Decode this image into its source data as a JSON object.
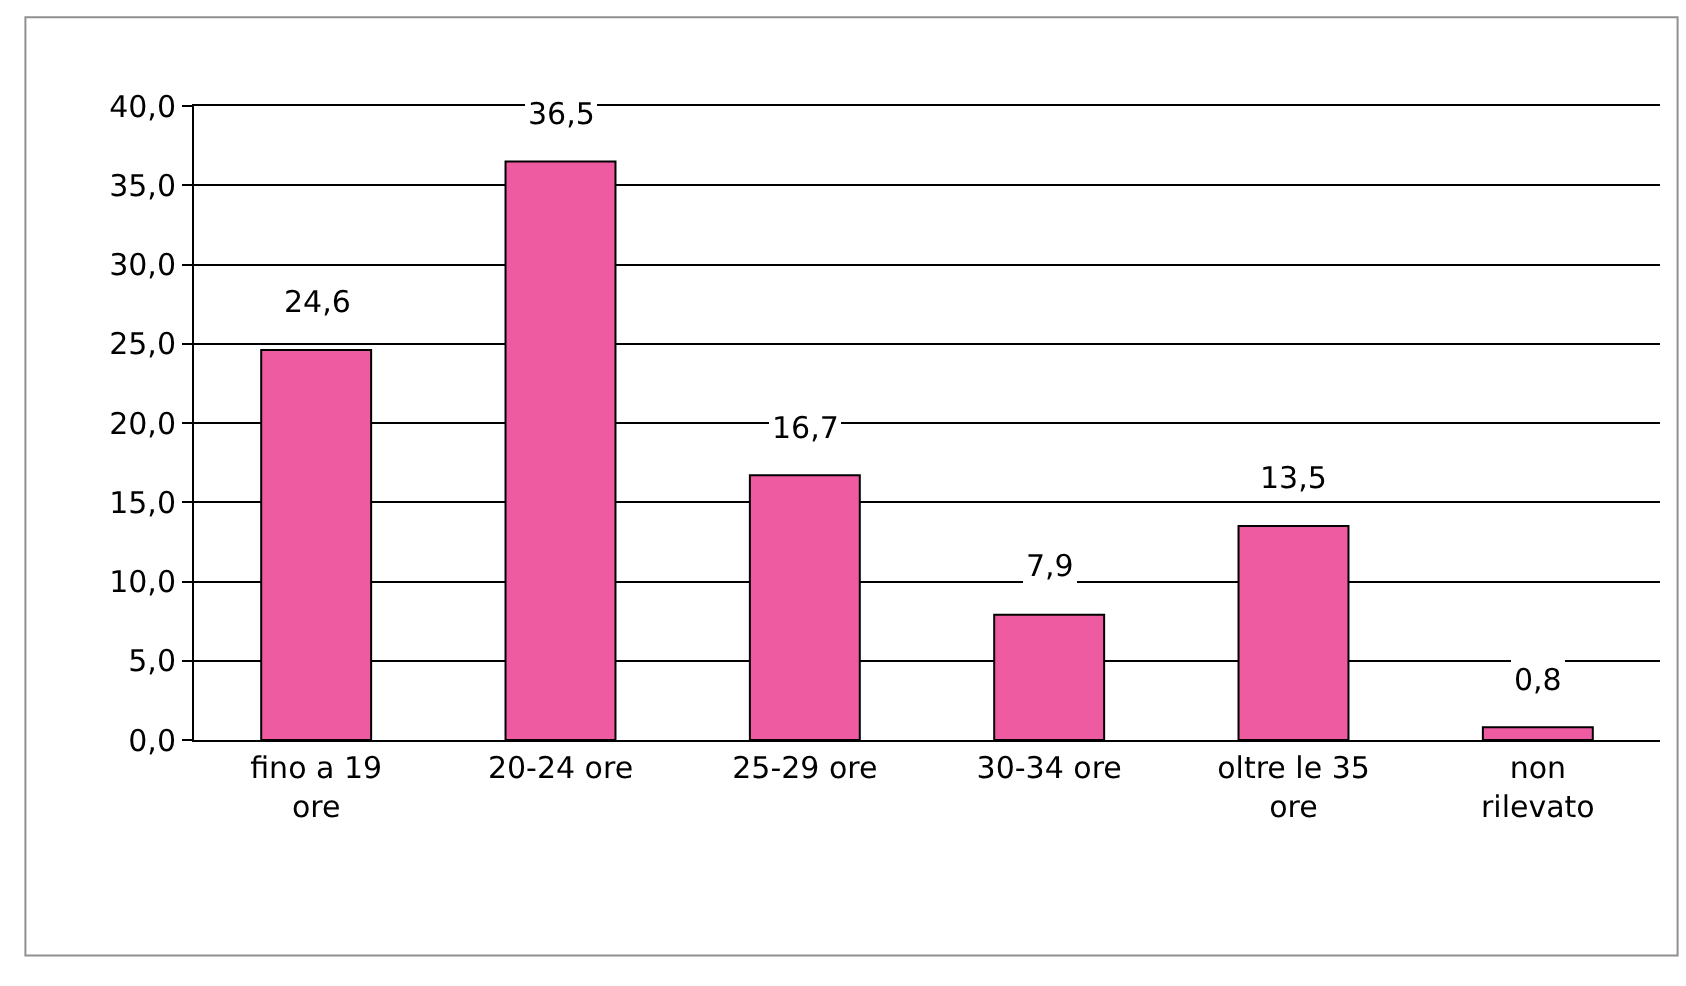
{
  "chart_data": {
    "type": "bar",
    "categories": [
      "fino a 19 ore",
      "20-24 ore",
      "25-29 ore",
      "30-34 ore",
      "oltre le 35 ore",
      "non rilevato"
    ],
    "values": [
      24.6,
      36.5,
      16.7,
      7.9,
      13.5,
      0.8
    ],
    "value_labels": [
      "24,6",
      "36,5",
      "16,7",
      "7,9",
      "13,5",
      "0,8"
    ],
    "color": "#ef5ba1",
    "ylim": [
      0,
      40
    ],
    "yticks": [
      {
        "value": 0,
        "label": "0,0"
      },
      {
        "value": 5,
        "label": "5,0"
      },
      {
        "value": 10,
        "label": "10,0"
      },
      {
        "value": 15,
        "label": "15,0"
      },
      {
        "value": 20,
        "label": "20,0"
      },
      {
        "value": 25,
        "label": "25,0"
      },
      {
        "value": 30,
        "label": "30,0"
      },
      {
        "value": 35,
        "label": "35,0"
      },
      {
        "value": 40,
        "label": "40,0"
      }
    ],
    "grid": "y",
    "legend": false
  }
}
